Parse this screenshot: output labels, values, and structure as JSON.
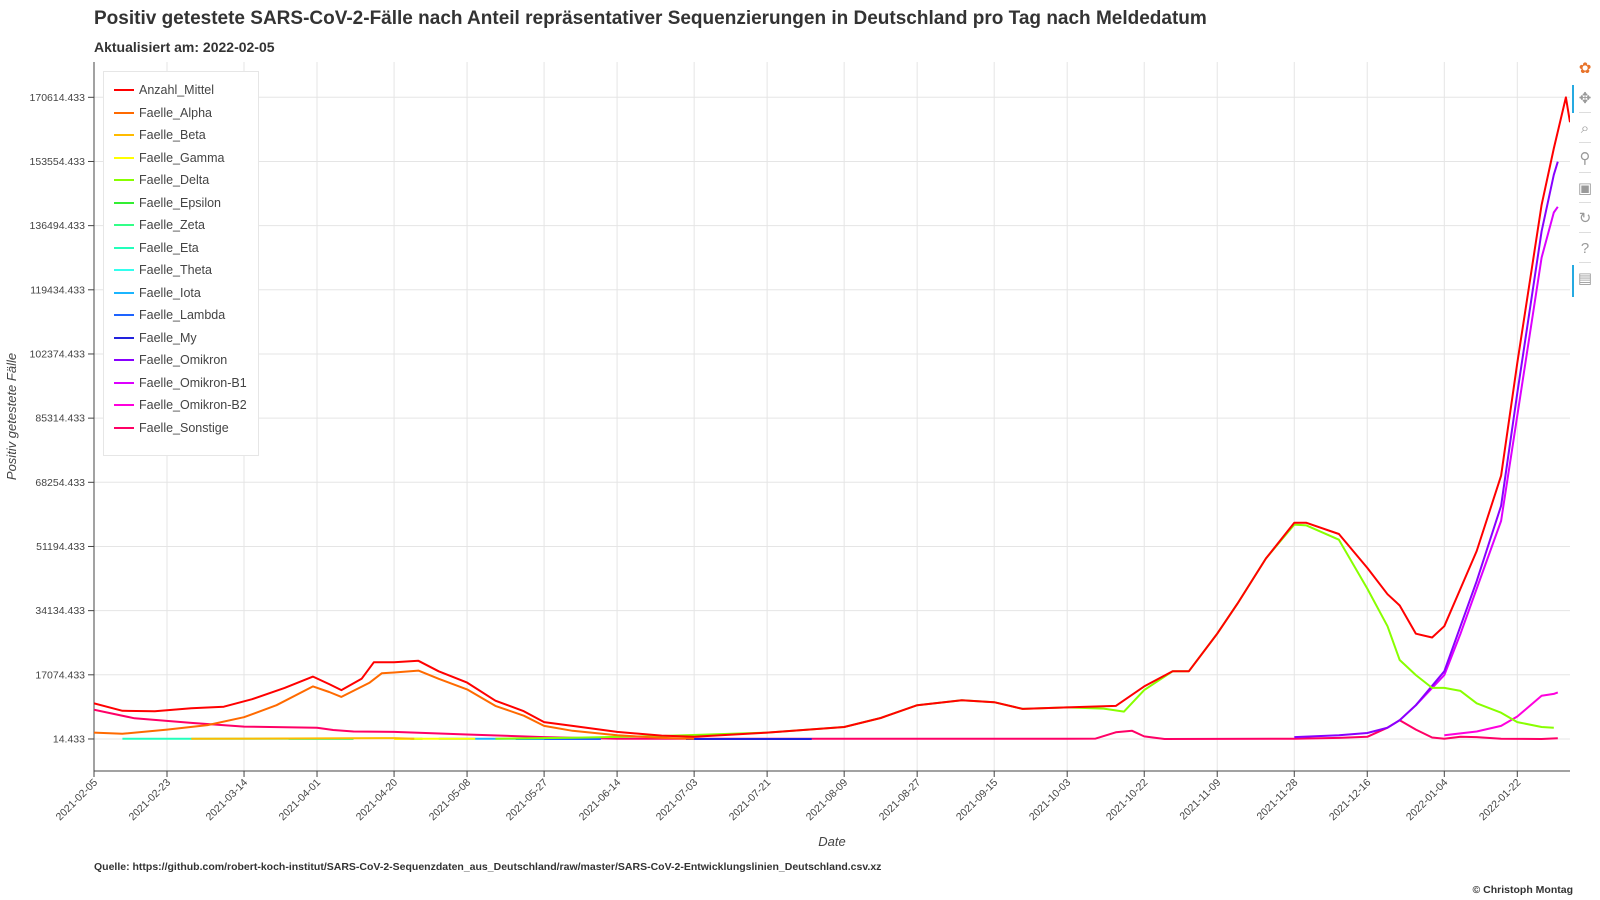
{
  "title": "Positiv getestete SARS-CoV-2-Fälle nach Anteil repräsentativer Sequenzierungen in Deutschland pro Tag nach Meldedatum",
  "subtitle": "Aktualisiert am: 2022-02-05",
  "source": "Quelle: https://github.com/robert-koch-institut/SARS-CoV-2-Sequenzdaten_aus_Deutschland/raw/master/SARS-CoV-2-Entwicklungslinien_Deutschland.csv.xz",
  "copyright": "© Christoph Montag",
  "toolbar": {
    "tools": [
      {
        "name": "bokeh-logo-icon",
        "glyph": "✿"
      },
      {
        "name": "pan-tool-icon",
        "glyph": "✥"
      },
      {
        "name": "box-zoom-tool-icon",
        "glyph": "⌕"
      },
      {
        "name": "wheel-zoom-tool-icon",
        "glyph": "⚲"
      },
      {
        "name": "save-tool-icon",
        "glyph": "▣"
      },
      {
        "name": "reset-tool-icon",
        "glyph": "↻"
      },
      {
        "name": "help-tool-icon",
        "glyph": "?"
      },
      {
        "name": "hover-tool-icon",
        "glyph": "▤"
      }
    ]
  },
  "chart_data": {
    "type": "line",
    "title": "Positiv getestete SARS-CoV-2-Fälle nach Anteil repräsentativer Sequenzierungen in Deutschland pro Tag nach Meldedatum",
    "xlabel": "Date",
    "ylabel": "Positiv getestete Fälle",
    "x_ticks": [
      "2021-02-05",
      "2021-02-23",
      "2021-03-14",
      "2021-04-01",
      "2021-04-20",
      "2021-05-08",
      "2021-05-27",
      "2021-06-14",
      "2021-07-03",
      "2021-07-21",
      "2021-08-09",
      "2021-08-27",
      "2021-09-15",
      "2021-10-03",
      "2021-10-22",
      "2021-11-09",
      "2021-11-28",
      "2021-12-16",
      "2022-01-04",
      "2022-01-22"
    ],
    "y_ticks": [
      "14.433",
      "17074.433",
      "34134.433",
      "51194.433",
      "68254.433",
      "85314.433",
      "102374.433",
      "119434.433",
      "136494.433",
      "153554.433",
      "170614.433"
    ],
    "xlim": [
      "2021-02-05",
      "2022-02-04"
    ],
    "ylim": [
      -8500,
      180000
    ],
    "grid": true,
    "legend_position": "top-left",
    "series": [
      {
        "name": "Anzahl_Mittel",
        "color": "#ff0000",
        "points": [
          [
            "2021-02-05",
            9500
          ],
          [
            "2021-02-12",
            7500
          ],
          [
            "2021-02-20",
            7400
          ],
          [
            "2021-03-01",
            8200
          ],
          [
            "2021-03-09",
            8600
          ],
          [
            "2021-03-16",
            10600
          ],
          [
            "2021-03-24",
            13600
          ],
          [
            "2021-03-31",
            16600
          ],
          [
            "2021-04-04",
            14600
          ],
          [
            "2021-04-07",
            13000
          ],
          [
            "2021-04-12",
            16000
          ],
          [
            "2021-04-15",
            20400
          ],
          [
            "2021-04-20",
            20400
          ],
          [
            "2021-04-26",
            20800
          ],
          [
            "2021-05-01",
            18000
          ],
          [
            "2021-05-08",
            15000
          ],
          [
            "2021-05-15",
            10200
          ],
          [
            "2021-05-22",
            7400
          ],
          [
            "2021-05-27",
            4500
          ],
          [
            "2021-06-03",
            3500
          ],
          [
            "2021-06-14",
            1900
          ],
          [
            "2021-06-25",
            900
          ],
          [
            "2021-07-03",
            600
          ],
          [
            "2021-07-21",
            1700
          ],
          [
            "2021-08-09",
            3200
          ],
          [
            "2021-08-18",
            5600
          ],
          [
            "2021-08-27",
            9000
          ],
          [
            "2021-09-07",
            10300
          ],
          [
            "2021-09-15",
            9800
          ],
          [
            "2021-09-22",
            8000
          ],
          [
            "2021-10-03",
            8400
          ],
          [
            "2021-10-15",
            8800
          ],
          [
            "2021-10-22",
            14000
          ],
          [
            "2021-10-29",
            18000
          ],
          [
            "2021-11-02",
            18000
          ],
          [
            "2021-11-09",
            28000
          ],
          [
            "2021-11-14",
            36000
          ],
          [
            "2021-11-21",
            48000
          ],
          [
            "2021-11-28",
            57500
          ],
          [
            "2021-12-01",
            57500
          ],
          [
            "2021-12-09",
            54500
          ],
          [
            "2021-12-16",
            45500
          ],
          [
            "2021-12-21",
            38500
          ],
          [
            "2021-12-24",
            35500
          ],
          [
            "2021-12-28",
            28000
          ],
          [
            "2022-01-01",
            27000
          ],
          [
            "2022-01-04",
            30000
          ],
          [
            "2022-01-08",
            40000
          ],
          [
            "2022-01-12",
            50000
          ],
          [
            "2022-01-18",
            70000
          ],
          [
            "2022-01-22",
            100000
          ],
          [
            "2022-01-28",
            142000
          ],
          [
            "2022-01-31",
            157000
          ],
          [
            "2022-02-03",
            170600
          ],
          [
            "2022-02-04",
            164000
          ]
        ]
      },
      {
        "name": "Faelle_Alpha",
        "color": "#ff6a00",
        "points": [
          [
            "2021-02-05",
            1700
          ],
          [
            "2021-02-12",
            1400
          ],
          [
            "2021-02-23",
            2500
          ],
          [
            "2021-03-05",
            3700
          ],
          [
            "2021-03-14",
            5800
          ],
          [
            "2021-03-22",
            9000
          ],
          [
            "2021-03-31",
            14000
          ],
          [
            "2021-04-04",
            12500
          ],
          [
            "2021-04-07",
            11200
          ],
          [
            "2021-04-14",
            15000
          ],
          [
            "2021-04-17",
            17500
          ],
          [
            "2021-04-20",
            17700
          ],
          [
            "2021-04-26",
            18200
          ],
          [
            "2021-05-01",
            16000
          ],
          [
            "2021-05-08",
            13200
          ],
          [
            "2021-05-15",
            8800
          ],
          [
            "2021-05-22",
            6200
          ],
          [
            "2021-05-27",
            3500
          ],
          [
            "2021-06-03",
            2200
          ],
          [
            "2021-06-14",
            1000
          ],
          [
            "2021-06-25",
            300
          ],
          [
            "2021-07-03",
            100
          ]
        ]
      },
      {
        "name": "Faelle_Beta",
        "color": "#ffbb00",
        "points": [
          [
            "2021-03-01",
            50
          ],
          [
            "2021-04-20",
            250
          ],
          [
            "2021-04-25",
            100
          ]
        ]
      },
      {
        "name": "Faelle_Gamma",
        "color": "#ffff00",
        "points": [
          [
            "2021-04-20",
            10
          ],
          [
            "2021-04-25",
            50
          ],
          [
            "2021-05-10",
            50
          ]
        ]
      },
      {
        "name": "Faelle_Delta",
        "color": "#88ff00",
        "points": [
          [
            "2021-05-15",
            100
          ],
          [
            "2021-06-03",
            350
          ],
          [
            "2021-06-25",
            800
          ],
          [
            "2021-07-21",
            1700
          ],
          [
            "2021-08-09",
            3200
          ],
          [
            "2021-08-18",
            5600
          ],
          [
            "2021-08-27",
            9000
          ],
          [
            "2021-09-07",
            10300
          ],
          [
            "2021-09-15",
            9800
          ],
          [
            "2021-09-22",
            8000
          ],
          [
            "2021-10-03",
            8400
          ],
          [
            "2021-10-12",
            8100
          ],
          [
            "2021-10-17",
            7300
          ],
          [
            "2021-10-22",
            13000
          ],
          [
            "2021-10-29",
            18000
          ],
          [
            "2021-11-02",
            18000
          ],
          [
            "2021-11-09",
            28000
          ],
          [
            "2021-11-14",
            36000
          ],
          [
            "2021-11-21",
            48000
          ],
          [
            "2021-11-28",
            57000
          ],
          [
            "2021-12-01",
            56800
          ],
          [
            "2021-12-09",
            53000
          ],
          [
            "2021-12-16",
            40000
          ],
          [
            "2021-12-21",
            30000
          ],
          [
            "2021-12-24",
            21000
          ],
          [
            "2021-12-28",
            17000
          ],
          [
            "2022-01-01",
            13600
          ],
          [
            "2022-01-04",
            13600
          ],
          [
            "2022-01-08",
            12800
          ],
          [
            "2022-01-12",
            9500
          ],
          [
            "2022-01-18",
            7000
          ],
          [
            "2022-01-22",
            4500
          ],
          [
            "2022-01-28",
            3200
          ],
          [
            "2022-01-31",
            3000
          ]
        ]
      },
      {
        "name": "Faelle_Epsilon",
        "color": "#33ee33",
        "points": [
          [
            "2021-04-24",
            50
          ],
          [
            "2021-04-27",
            50
          ]
        ]
      },
      {
        "name": "Faelle_Zeta",
        "color": "#33ff88",
        "points": [
          [
            "2021-03-25",
            100
          ],
          [
            "2021-04-10",
            80
          ]
        ]
      },
      {
        "name": "Faelle_Eta",
        "color": "#22ffbb",
        "points": [
          [
            "2021-02-12",
            100
          ],
          [
            "2021-02-26",
            100
          ],
          [
            "2021-03-25",
            100
          ],
          [
            "2021-04-10",
            100
          ]
        ]
      },
      {
        "name": "Faelle_Theta",
        "color": "#33ffee",
        "points": [
          [
            "2021-03-25",
            50
          ],
          [
            "2021-04-10",
            60
          ]
        ]
      },
      {
        "name": "Faelle_Iota",
        "color": "#1bb5ff",
        "points": [
          [
            "2021-05-01",
            50
          ],
          [
            "2021-05-27",
            50
          ]
        ]
      },
      {
        "name": "Faelle_Lambda",
        "color": "#1e64ff",
        "points": [
          [
            "2021-05-20",
            20
          ],
          [
            "2021-06-10",
            20
          ]
        ]
      },
      {
        "name": "Faelle_My",
        "color": "#2222dd",
        "points": [
          [
            "2021-07-01",
            10
          ],
          [
            "2021-08-01",
            10
          ]
        ]
      },
      {
        "name": "Faelle_Omikron",
        "color": "#8800ff",
        "points": [
          [
            "2021-11-28",
            500
          ],
          [
            "2021-12-09",
            1000
          ],
          [
            "2021-12-16",
            1600
          ],
          [
            "2021-12-21",
            3000
          ],
          [
            "2021-12-24",
            5000
          ],
          [
            "2021-12-28",
            9000
          ],
          [
            "2022-01-04",
            18000
          ],
          [
            "2022-01-08",
            30000
          ],
          [
            "2022-01-12",
            42000
          ],
          [
            "2022-01-18",
            62000
          ],
          [
            "2022-01-22",
            92000
          ],
          [
            "2022-01-28",
            135000
          ],
          [
            "2022-01-31",
            150000
          ],
          [
            "2022-02-01",
            153500
          ]
        ]
      },
      {
        "name": "Faelle_Omikron-B1",
        "color": "#dd00ff",
        "points": [
          [
            "2021-12-21",
            3000
          ],
          [
            "2021-12-24",
            5000
          ],
          [
            "2021-12-28",
            9000
          ],
          [
            "2022-01-04",
            17000
          ],
          [
            "2022-01-08",
            28000
          ],
          [
            "2022-01-12",
            40000
          ],
          [
            "2022-01-18",
            58000
          ],
          [
            "2022-01-22",
            86000
          ],
          [
            "2022-01-28",
            128000
          ],
          [
            "2022-01-31",
            140000
          ],
          [
            "2022-02-01",
            141500
          ]
        ]
      },
      {
        "name": "Faelle_Omikron-B2",
        "color": "#ff00dd",
        "points": [
          [
            "2022-01-04",
            1000
          ],
          [
            "2022-01-08",
            1500
          ],
          [
            "2022-01-12",
            2000
          ],
          [
            "2022-01-18",
            3500
          ],
          [
            "2022-01-22",
            6000
          ],
          [
            "2022-01-28",
            11500
          ],
          [
            "2022-01-31",
            12000
          ],
          [
            "2022-02-01",
            12400
          ]
        ]
      },
      {
        "name": "Faelle_Sonstige",
        "color": "#ff0066",
        "points": [
          [
            "2021-02-05",
            7800
          ],
          [
            "2021-02-15",
            5500
          ],
          [
            "2021-03-01",
            4300
          ],
          [
            "2021-03-14",
            3300
          ],
          [
            "2021-04-01",
            3000
          ],
          [
            "2021-04-05",
            2400
          ],
          [
            "2021-04-10",
            2000
          ],
          [
            "2021-04-20",
            1900
          ],
          [
            "2021-05-08",
            1200
          ],
          [
            "2021-05-27",
            500
          ],
          [
            "2021-06-14",
            100
          ],
          [
            "2021-07-03",
            50
          ],
          [
            "2021-08-09",
            50
          ],
          [
            "2021-10-03",
            50
          ],
          [
            "2021-10-10",
            120
          ],
          [
            "2021-10-15",
            1800
          ],
          [
            "2021-10-19",
            2200
          ],
          [
            "2021-10-22",
            700
          ],
          [
            "2021-10-27",
            0
          ],
          [
            "2021-11-28",
            100
          ],
          [
            "2021-12-09",
            300
          ],
          [
            "2021-12-16",
            600
          ],
          [
            "2021-12-21",
            3000
          ],
          [
            "2021-12-24",
            5000
          ],
          [
            "2021-12-28",
            2500
          ],
          [
            "2022-01-01",
            400
          ],
          [
            "2022-01-04",
            100
          ],
          [
            "2022-01-08",
            600
          ],
          [
            "2022-01-12",
            500
          ],
          [
            "2022-01-18",
            100
          ],
          [
            "2022-01-28",
            0
          ],
          [
            "2022-02-01",
            200
          ]
        ]
      }
    ]
  }
}
